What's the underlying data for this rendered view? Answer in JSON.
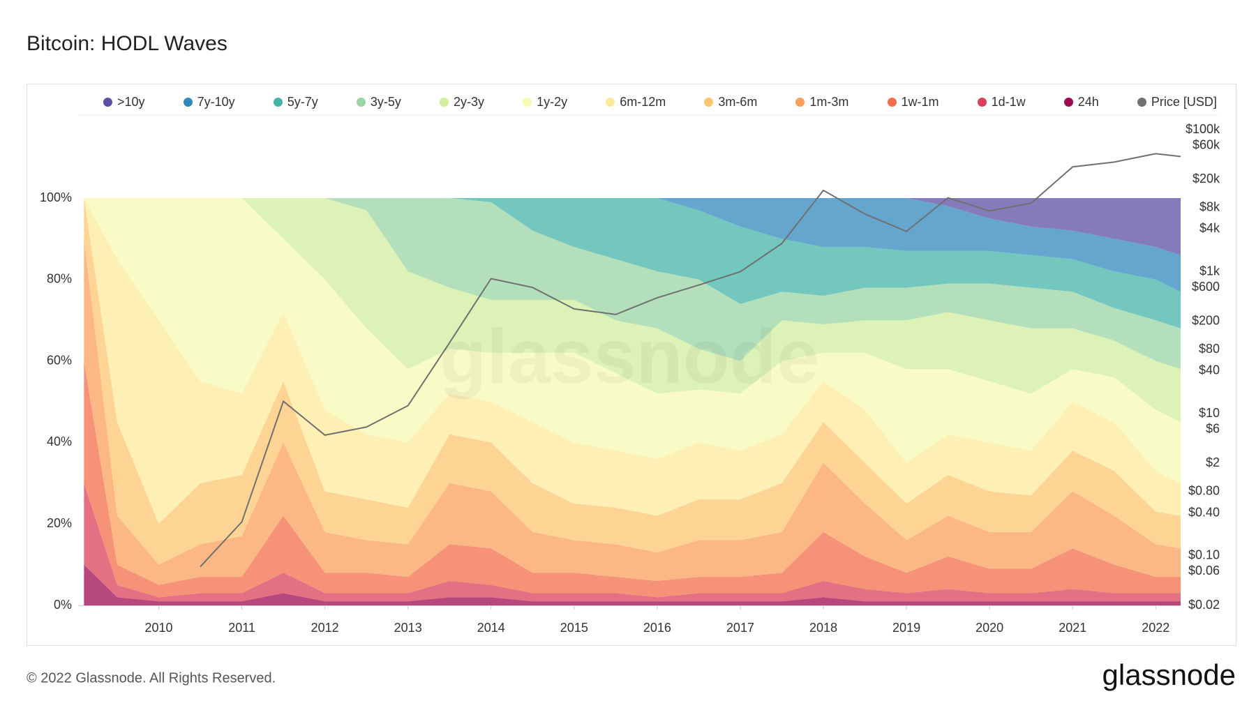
{
  "chart_data": {
    "type": "stacked_area",
    "title": "Bitcoin: HODL Waves",
    "footer": "© 2022 Glassnode. All Rights Reserved.",
    "brand": "glassnode",
    "watermark": "glassnode",
    "x": [
      2009.1,
      2009.5,
      2010,
      2010.5,
      2011,
      2011.5,
      2012,
      2012.5,
      2013,
      2013.5,
      2014,
      2014.5,
      2015,
      2015.5,
      2016,
      2016.5,
      2017,
      2017.5,
      2018,
      2018.5,
      2019,
      2019.5,
      2020,
      2020.5,
      2021,
      2021.5,
      2022,
      2022.3
    ],
    "xlim": [
      2009.03,
      2022.3
    ],
    "xticks": [
      2010,
      2011,
      2012,
      2013,
      2014,
      2015,
      2016,
      2017,
      2018,
      2019,
      2020,
      2021,
      2022
    ],
    "ylim": [
      0,
      100
    ],
    "yticks": [
      {
        "value": 0,
        "label": "0%"
      },
      {
        "value": 20,
        "label": "20%"
      },
      {
        "value": 40,
        "label": "40%"
      },
      {
        "value": 60,
        "label": "60%"
      },
      {
        "value": 80,
        "label": "80%"
      },
      {
        "value": 100,
        "label": "100%"
      }
    ],
    "y2_scale": "log",
    "y2lim": [
      0.02,
      100000
    ],
    "y2ticks": [
      {
        "value": 0.02,
        "label": "$0.02"
      },
      {
        "value": 0.06,
        "label": "$0.06"
      },
      {
        "value": 0.1,
        "label": "$0.10"
      },
      {
        "value": 0.4,
        "label": "$0.40"
      },
      {
        "value": 0.8,
        "label": "$0.80"
      },
      {
        "value": 2,
        "label": "$2"
      },
      {
        "value": 6,
        "label": "$6"
      },
      {
        "value": 10,
        "label": "$10"
      },
      {
        "value": 40,
        "label": "$40"
      },
      {
        "value": 80,
        "label": "$80"
      },
      {
        "value": 200,
        "label": "$200"
      },
      {
        "value": 600,
        "label": "$600"
      },
      {
        "value": 1000,
        "label": "$1k"
      },
      {
        "value": 4000,
        "label": "$4k"
      },
      {
        "value": 8000,
        "label": "$8k"
      },
      {
        "value": 20000,
        "label": "$20k"
      },
      {
        "value": 60000,
        "label": "$60k"
      },
      {
        "value": 100000,
        "label": "$100k"
      }
    ],
    "series": [
      {
        "name": ">10y",
        "color": "#5e4fa2",
        "values": [
          0,
          0,
          0,
          0,
          0,
          0,
          0,
          0,
          0,
          0,
          0,
          0,
          0,
          0,
          0,
          0,
          0,
          0,
          0,
          0,
          0,
          2,
          5,
          7,
          8,
          10,
          12,
          14
        ]
      },
      {
        "name": "7y-10y",
        "color": "#3288bd",
        "values": [
          0,
          0,
          0,
          0,
          0,
          0,
          0,
          0,
          0,
          0,
          0,
          0,
          0,
          0,
          0,
          3,
          7,
          10,
          12,
          12,
          13,
          11,
          8,
          7,
          7,
          8,
          8,
          9
        ]
      },
      {
        "name": "5y-7y",
        "color": "#45b4a8",
        "values": [
          0,
          0,
          0,
          0,
          0,
          0,
          0,
          0,
          0,
          0,
          1,
          8,
          12,
          15,
          18,
          17,
          19,
          13,
          12,
          10,
          9,
          8,
          8,
          8,
          8,
          9,
          10,
          9
        ]
      },
      {
        "name": "3y-5y",
        "color": "#99d5a4",
        "values": [
          0,
          0,
          0,
          0,
          0,
          0,
          0,
          3,
          18,
          22,
          24,
          17,
          13,
          15,
          14,
          17,
          14,
          7,
          7,
          8,
          8,
          7,
          9,
          10,
          9,
          8,
          10,
          10
        ]
      },
      {
        "name": "2y-3y",
        "color": "#d2ed9e",
        "values": [
          0,
          0,
          0,
          0,
          0,
          10,
          20,
          29,
          24,
          15,
          13,
          13,
          13,
          13,
          16,
          10,
          8,
          10,
          7,
          8,
          12,
          14,
          15,
          16,
          10,
          9,
          12,
          13
        ]
      },
      {
        "name": "1y-2y",
        "color": "#f7f9b3",
        "values": [
          0,
          15,
          30,
          45,
          48,
          18,
          32,
          26,
          18,
          11,
          12,
          17,
          22,
          19,
          16,
          13,
          14,
          18,
          7,
          14,
          23,
          16,
          15,
          14,
          8,
          11,
          15,
          15
        ]
      },
      {
        "name": "6m-12m",
        "color": "#fde99b",
        "values": [
          0,
          40,
          50,
          25,
          20,
          17,
          20,
          16,
          16,
          10,
          10,
          15,
          15,
          14,
          14,
          14,
          12,
          12,
          10,
          13,
          10,
          10,
          12,
          11,
          12,
          12,
          10,
          8
        ]
      },
      {
        "name": "3m-6m",
        "color": "#fcc670",
        "values": [
          10,
          23,
          10,
          15,
          15,
          15,
          10,
          10,
          9,
          12,
          12,
          12,
          9,
          9,
          9,
          10,
          10,
          12,
          10,
          10,
          9,
          10,
          10,
          9,
          10,
          11,
          8,
          8
        ]
      },
      {
        "name": "1m-3m",
        "color": "#f9a05c",
        "values": [
          30,
          12,
          5,
          8,
          10,
          18,
          10,
          8,
          8,
          15,
          14,
          10,
          8,
          8,
          7,
          9,
          9,
          10,
          17,
          13,
          8,
          10,
          9,
          9,
          14,
          12,
          8,
          7
        ]
      },
      {
        "name": "1w-1m",
        "color": "#f26d4b",
        "values": [
          30,
          5,
          3,
          4,
          4,
          14,
          5,
          5,
          4,
          9,
          9,
          5,
          5,
          4,
          4,
          4,
          4,
          5,
          12,
          8,
          5,
          8,
          6,
          6,
          10,
          7,
          4,
          4
        ]
      },
      {
        "name": "1d-1w",
        "color": "#d9405a",
        "values": [
          20,
          3,
          1,
          2,
          2,
          5,
          2,
          2,
          2,
          4,
          3,
          2,
          2,
          2,
          1,
          2,
          2,
          2,
          4,
          3,
          2,
          3,
          2,
          2,
          3,
          2,
          2,
          2
        ]
      },
      {
        "name": "24h",
        "color": "#9e0b52",
        "values": [
          10,
          2,
          1,
          1,
          1,
          3,
          1,
          1,
          1,
          2,
          2,
          1,
          1,
          1,
          1,
          1,
          1,
          1,
          2,
          1,
          1,
          1,
          1,
          1,
          1,
          1,
          1,
          1
        ]
      },
      {
        "name": "Price [USD]",
        "color": "#707070",
        "axis": "y2",
        "values": [
          null,
          null,
          null,
          0.07,
          0.3,
          15,
          5,
          6.5,
          13,
          100,
          800,
          600,
          300,
          250,
          430,
          650,
          1000,
          2500,
          14000,
          6500,
          3700,
          11000,
          7200,
          9200,
          30000,
          35000,
          46000,
          42000
        ]
      }
    ]
  }
}
